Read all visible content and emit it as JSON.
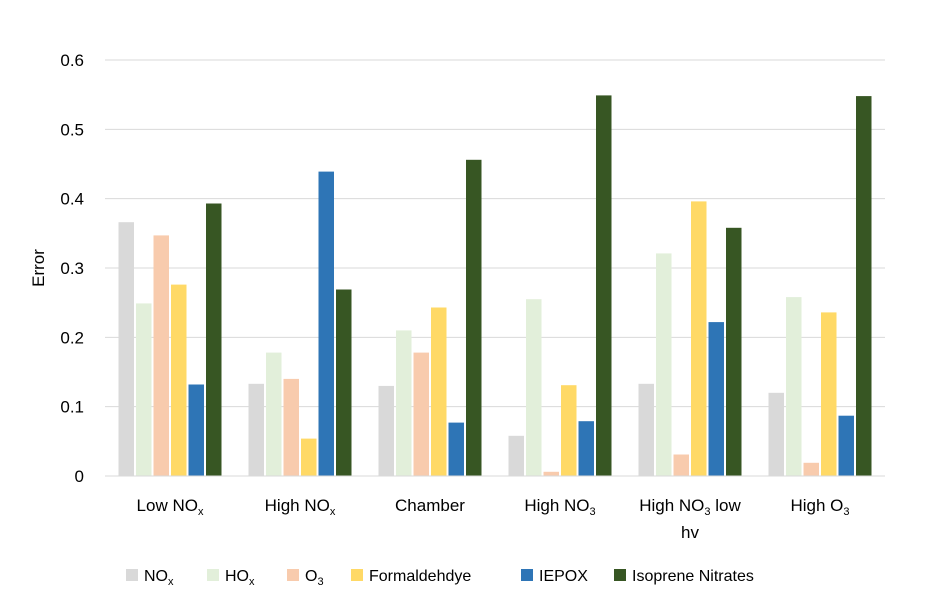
{
  "chart_data": {
    "type": "bar",
    "ylabel": "Error",
    "ylim": [
      0,
      0.6
    ],
    "yticks": [
      "0",
      "0.1",
      "0.2",
      "0.3",
      "0.4",
      "0.5",
      "0.6"
    ],
    "grid": true,
    "legend_position": "bottom",
    "categories": [
      {
        "main": "Low NO",
        "sub": "x",
        "tail": "",
        "line2": ""
      },
      {
        "main": "High NO",
        "sub": "x",
        "tail": "",
        "line2": ""
      },
      {
        "main": "Chamber",
        "sub": "",
        "tail": "",
        "line2": ""
      },
      {
        "main": "High NO",
        "sub": "3",
        "tail": "",
        "line2": ""
      },
      {
        "main": "High  NO",
        "sub": "3",
        "tail": " low",
        "line2": "hv"
      },
      {
        "main": "High  O",
        "sub": "3",
        "tail": "",
        "line2": ""
      }
    ],
    "series": [
      {
        "name": "NO",
        "name_sub": "x",
        "color": "#d9d9d9",
        "values": [
          0.366,
          0.133,
          0.13,
          0.058,
          0.133,
          0.12
        ]
      },
      {
        "name": "HO",
        "name_sub": "x",
        "color": "#e2efda",
        "values": [
          0.249,
          0.178,
          0.21,
          0.255,
          0.321,
          0.258
        ]
      },
      {
        "name": "O",
        "name_sub": "3",
        "color": "#f8cbad",
        "values": [
          0.347,
          0.14,
          0.178,
          0.006,
          0.031,
          0.019
        ]
      },
      {
        "name": "Formaldehdye",
        "name_sub": "",
        "color": "#ffd966",
        "values": [
          0.276,
          0.054,
          0.243,
          0.131,
          0.396,
          0.236
        ]
      },
      {
        "name": "IEPOX",
        "name_sub": "",
        "color": "#2e75b6",
        "values": [
          0.132,
          0.439,
          0.077,
          0.079,
          0.222,
          0.087
        ]
      },
      {
        "name": "Isoprene Nitrates",
        "name_sub": "",
        "color": "#375623",
        "values": [
          0.393,
          0.269,
          0.456,
          0.549,
          0.358,
          0.548
        ]
      }
    ]
  }
}
